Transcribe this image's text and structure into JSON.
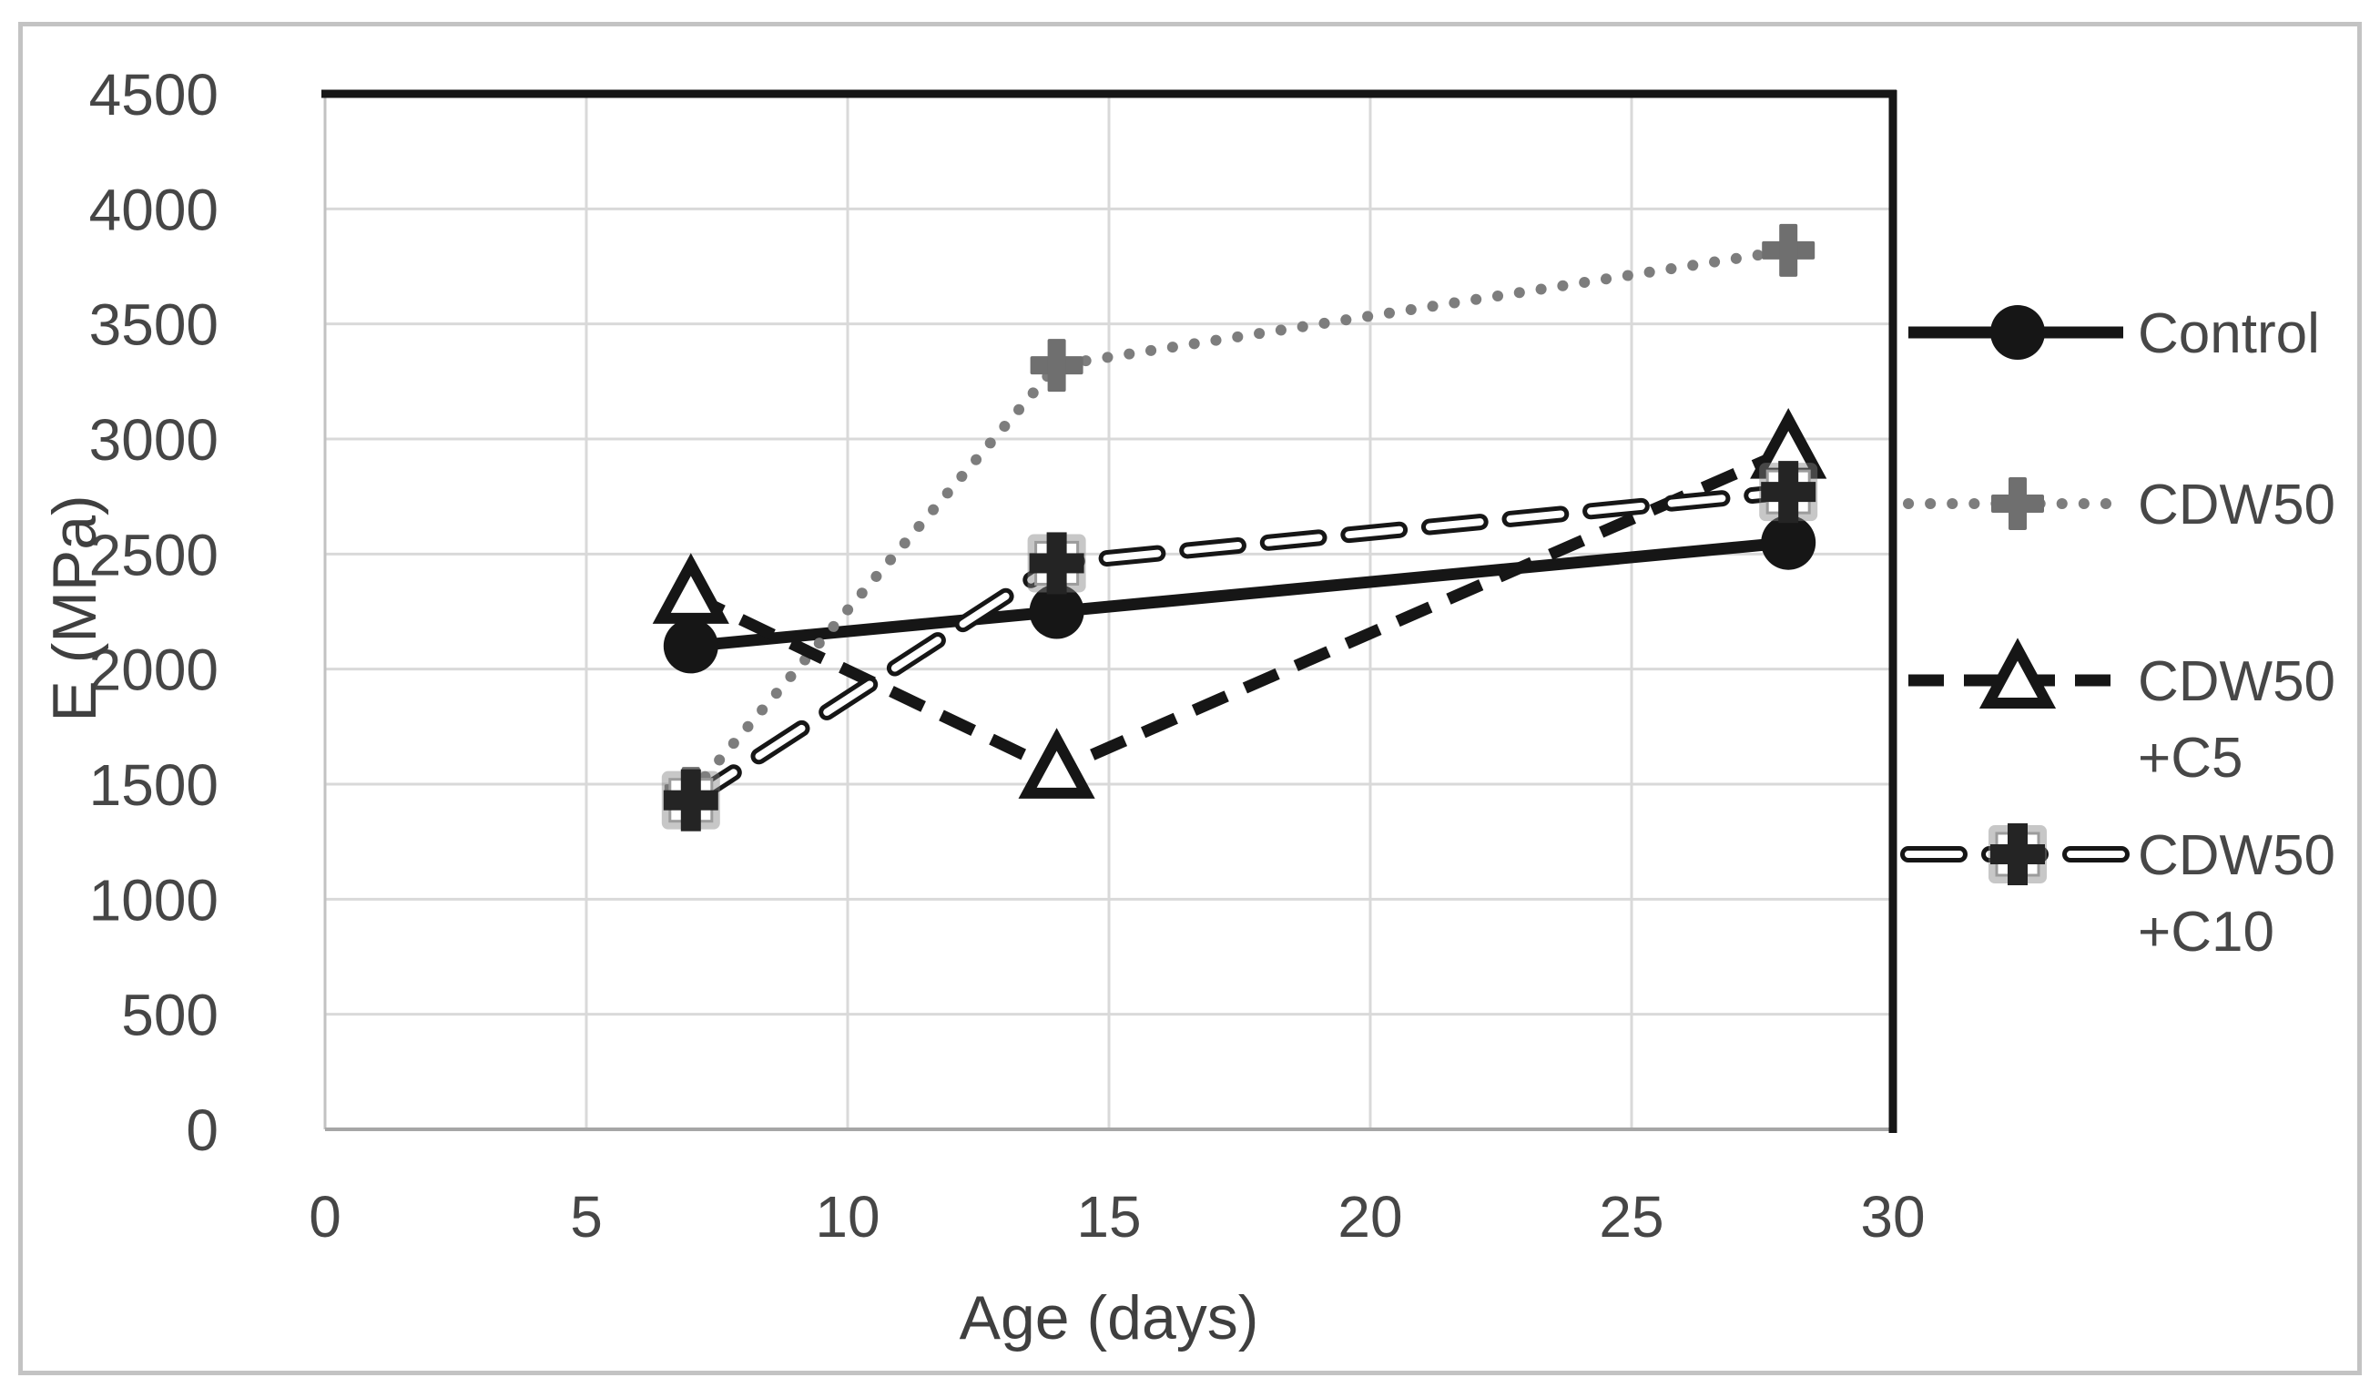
{
  "figure": {
    "type_description": "Excel-style line chart with legend on right",
    "title": ""
  },
  "colors": {
    "black_line": "#161616",
    "gray_line": "#7d7d7d",
    "gridline": "#d9d9d9",
    "left_axis": "#c2c2c2",
    "bottom_axis": "#a6a6a6",
    "tick_text": "#464646",
    "legend_text": "#474747",
    "frame_border": "#c3c3c3",
    "marker_plus_gray": "#6f6f6f",
    "marker_square_glow": "rgba(130,130,130,0.45)",
    "marker_dark": "#242424",
    "white": "#ffffff"
  },
  "chart_data": {
    "type": "line",
    "title": "",
    "xlabel": "Age (days)",
    "ylabel": "E (MPa)",
    "x": [
      7,
      14,
      28
    ],
    "series": [
      {
        "name": "Control",
        "values": [
          2100,
          2250,
          2550
        ],
        "line": "solid",
        "marker": "circle",
        "label_lines": [
          "Control"
        ]
      },
      {
        "name": "CDW50",
        "values": [
          1460,
          3320,
          3820
        ],
        "line": "dotted",
        "marker": "plus",
        "label_lines": [
          "CDW50"
        ]
      },
      {
        "name": "CDW50+C5",
        "values": [
          2320,
          1560,
          2950
        ],
        "line": "dashed",
        "marker": "triangle-open",
        "label_lines": [
          "CDW50",
          "+C5"
        ]
      },
      {
        "name": "CDW50+C10",
        "values": [
          1430,
          2460,
          2770
        ],
        "line": "outlined-dash",
        "marker": "square-plus",
        "label_lines": [
          "CDW50",
          "+C10"
        ]
      }
    ],
    "x_ticks": [
      0,
      5,
      10,
      15,
      20,
      25,
      30
    ],
    "y_ticks": [
      0,
      500,
      1000,
      1500,
      2000,
      2500,
      3000,
      3500,
      4000,
      4500
    ],
    "xlim": [
      0,
      30
    ],
    "ylim": [
      0,
      4500
    ],
    "grid": true,
    "legend_position": "right"
  }
}
